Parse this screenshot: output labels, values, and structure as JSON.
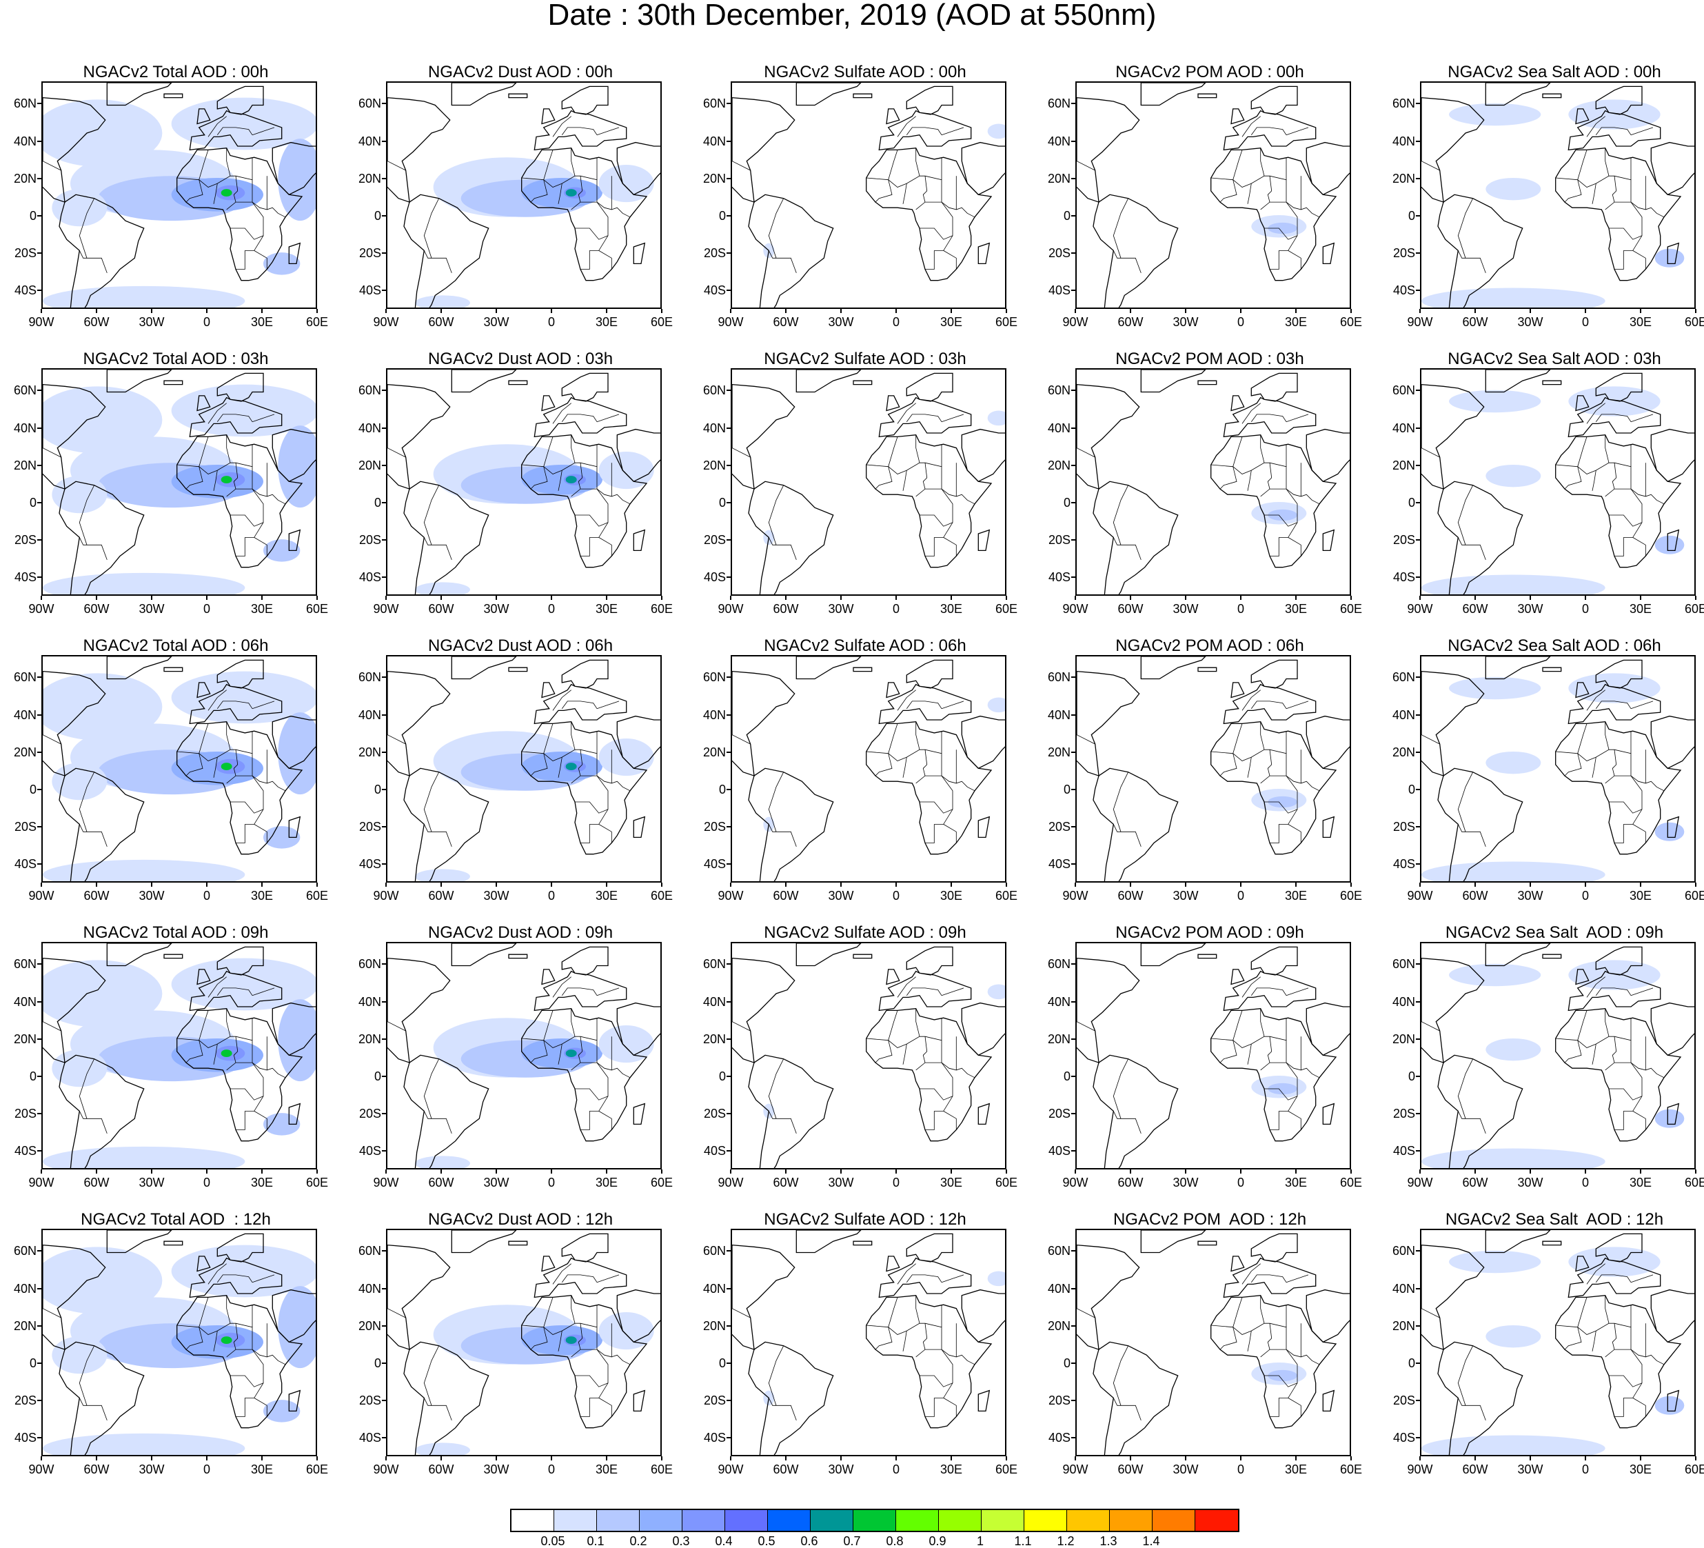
{
  "title": "Date : 30th December, 2019 (AOD at 550nm)",
  "axes": {
    "lat_labels": [
      "60N",
      "40N",
      "20N",
      "0",
      "20S",
      "40S"
    ],
    "lon_labels": [
      "90W",
      "60W",
      "30W",
      "0",
      "30E",
      "60E"
    ]
  },
  "panels": [
    {
      "title": "NGACv2 Total AOD : 00h",
      "species": "total"
    },
    {
      "title": "NGACv2 Dust AOD : 00h",
      "species": "dust"
    },
    {
      "title": "NGACv2 Sulfate AOD : 00h",
      "species": "sulfate"
    },
    {
      "title": "NGACv2 POM AOD : 00h",
      "species": "pom"
    },
    {
      "title": "NGACv2 Sea Salt AOD : 00h",
      "species": "seasalt"
    },
    {
      "title": "NGACv2 Total AOD : 03h",
      "species": "total"
    },
    {
      "title": "NGACv2 Dust AOD : 03h",
      "species": "dust"
    },
    {
      "title": "NGACv2 Sulfate AOD : 03h",
      "species": "sulfate"
    },
    {
      "title": "NGACv2 POM AOD : 03h",
      "species": "pom"
    },
    {
      "title": "NGACv2 Sea Salt AOD : 03h",
      "species": "seasalt"
    },
    {
      "title": "NGACv2 Total AOD : 06h",
      "species": "total"
    },
    {
      "title": "NGACv2 Dust AOD : 06h",
      "species": "dust"
    },
    {
      "title": "NGACv2 Sulfate AOD : 06h",
      "species": "sulfate"
    },
    {
      "title": "NGACv2 POM AOD : 06h",
      "species": "pom"
    },
    {
      "title": "NGACv2 Sea Salt AOD : 06h",
      "species": "seasalt"
    },
    {
      "title": "NGACv2 Total AOD : 09h",
      "species": "total"
    },
    {
      "title": "NGACv2 Dust AOD : 09h",
      "species": "dust"
    },
    {
      "title": "NGACv2 Sulfate AOD : 09h",
      "species": "sulfate"
    },
    {
      "title": "NGACv2 POM AOD : 09h",
      "species": "pom"
    },
    {
      "title": "NGACv2 Sea Salt  AOD : 09h",
      "species": "seasalt"
    },
    {
      "title": "NGACv2 Total AOD  : 12h",
      "species": "total"
    },
    {
      "title": "NGACv2 Dust AOD : 12h",
      "species": "dust"
    },
    {
      "title": "NGACv2 Sulfate AOD : 12h",
      "species": "sulfate"
    },
    {
      "title": "NGACv2 POM  AOD : 12h",
      "species": "pom"
    },
    {
      "title": "NGACv2 Sea Salt  AOD : 12h",
      "species": "seasalt"
    }
  ],
  "colorbar": {
    "labels": [
      "0.05",
      "0.1",
      "0.2",
      "0.3",
      "0.4",
      "0.5",
      "0.6",
      "0.7",
      "0.8",
      "0.9",
      "1",
      "1.1",
      "1.2",
      "1.3",
      "1.4"
    ],
    "colors": [
      "#ffffff",
      "#d6e2ff",
      "#b5c9ff",
      "#8fb0ff",
      "#7f96ff",
      "#6370ff",
      "#0063ff",
      "#009696",
      "#00c633",
      "#63ff00",
      "#96ff00",
      "#c6ff33",
      "#ffff00",
      "#ffc600",
      "#ffa000",
      "#ff7c00",
      "#ff1900"
    ]
  }
}
